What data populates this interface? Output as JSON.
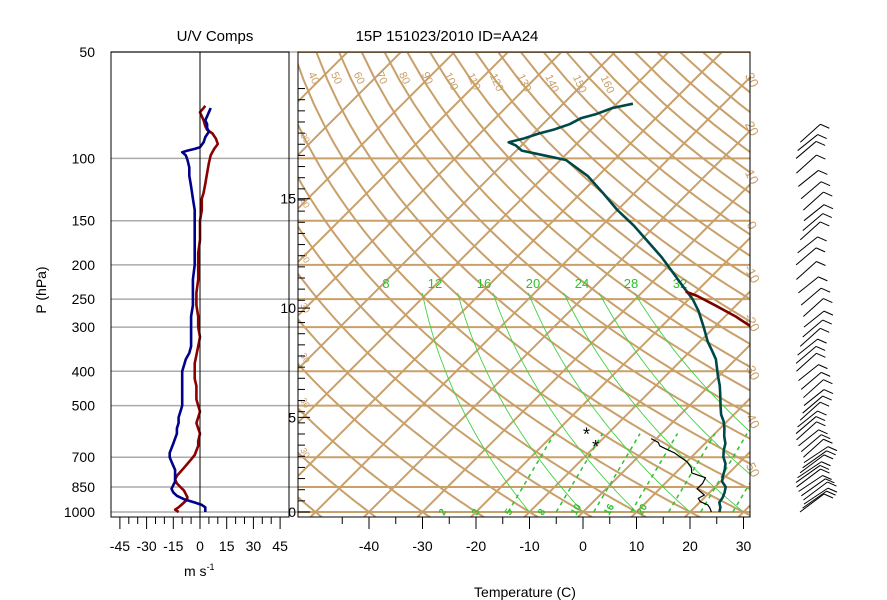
{
  "chart_data": [
    {
      "type": "line",
      "panel": "uv_components",
      "title": "U/V Comps",
      "xlabel": "m s",
      "xlabel_superscript": "-1",
      "ylabel": "P (hPa)",
      "y_scale": "log",
      "y_reversed": true,
      "ylim": [
        1000,
        50
      ],
      "xlim": [
        -50,
        50
      ],
      "x_ticks": [
        -45,
        -30,
        -15,
        0,
        15,
        30,
        45
      ],
      "y_tick_labels": [
        50,
        100,
        150,
        200,
        250,
        300,
        400,
        500,
        700,
        850,
        1000
      ],
      "grid": "horizontal at labeled pressures",
      "series": [
        {
          "color": "#8b0000",
          "points": [
            [
              1000,
              -12
            ],
            [
              985,
              -14
            ],
            [
              970,
              -12
            ],
            [
              950,
              -10
            ],
            [
              930,
              -8
            ],
            [
              910,
              -7
            ],
            [
              890,
              -8
            ],
            [
              870,
              -9
            ],
            [
              850,
              -11
            ],
            [
              830,
              -13
            ],
            [
              810,
              -14
            ],
            [
              790,
              -13
            ],
            [
              770,
              -11
            ],
            [
              750,
              -9
            ],
            [
              730,
              -7
            ],
            [
              710,
              -5
            ],
            [
              690,
              -3
            ],
            [
              670,
              -2
            ],
            [
              650,
              -1
            ],
            [
              630,
              -1
            ],
            [
              600,
              0
            ],
            [
              580,
              -1
            ],
            [
              560,
              -2
            ],
            [
              540,
              -1
            ],
            [
              520,
              0
            ],
            [
              500,
              -1
            ],
            [
              480,
              -2
            ],
            [
              460,
              -2
            ],
            [
              440,
              -2
            ],
            [
              420,
              -3
            ],
            [
              400,
              -3
            ],
            [
              380,
              -3
            ],
            [
              360,
              -2
            ],
            [
              340,
              -1
            ],
            [
              320,
              0
            ],
            [
              300,
              -1
            ],
            [
              280,
              -1
            ],
            [
              260,
              -2
            ],
            [
              240,
              -2
            ],
            [
              220,
              -1
            ],
            [
              200,
              -1
            ],
            [
              185,
              -1
            ],
            [
              170,
              0
            ],
            [
              160,
              0
            ],
            [
              150,
              0
            ],
            [
              140,
              1
            ],
            [
              130,
              1
            ],
            [
              125,
              2
            ],
            [
              118,
              3
            ],
            [
              110,
              4
            ],
            [
              103,
              5
            ],
            [
              98,
              6
            ],
            [
              94,
              8
            ],
            [
              91,
              10
            ],
            [
              88,
              9
            ],
            [
              85,
              7
            ],
            [
              83,
              4
            ],
            [
              81,
              3
            ],
            [
              78,
              2
            ],
            [
              76,
              1
            ],
            [
              74,
              0
            ],
            [
              72,
              2
            ],
            [
              71,
              3
            ]
          ]
        },
        {
          "color": "#00008b",
          "points": [
            [
              1000,
              3
            ],
            [
              985,
              3
            ],
            [
              970,
              3
            ],
            [
              955,
              1
            ],
            [
              940,
              -3
            ],
            [
              920,
              -9
            ],
            [
              900,
              -13
            ],
            [
              880,
              -15
            ],
            [
              860,
              -16
            ],
            [
              840,
              -15
            ],
            [
              820,
              -14
            ],
            [
              800,
              -14
            ],
            [
              780,
              -14
            ],
            [
              760,
              -14
            ],
            [
              740,
              -15
            ],
            [
              720,
              -16
            ],
            [
              700,
              -17
            ],
            [
              680,
              -17
            ],
            [
              660,
              -16
            ],
            [
              640,
              -15
            ],
            [
              620,
              -14
            ],
            [
              600,
              -13
            ],
            [
              580,
              -13
            ],
            [
              560,
              -12
            ],
            [
              540,
              -12
            ],
            [
              520,
              -11
            ],
            [
              500,
              -10
            ],
            [
              480,
              -10
            ],
            [
              460,
              -10
            ],
            [
              440,
              -10
            ],
            [
              420,
              -10
            ],
            [
              400,
              -10
            ],
            [
              385,
              -9
            ],
            [
              370,
              -8
            ],
            [
              355,
              -6
            ],
            [
              340,
              -5
            ],
            [
              320,
              -5
            ],
            [
              300,
              -5
            ],
            [
              280,
              -5
            ],
            [
              260,
              -4
            ],
            [
              240,
              -4
            ],
            [
              220,
              -4
            ],
            [
              200,
              -3
            ],
            [
              185,
              -3
            ],
            [
              170,
              -3
            ],
            [
              160,
              -3
            ],
            [
              150,
              -3
            ],
            [
              140,
              -3
            ],
            [
              130,
              -4
            ],
            [
              120,
              -5
            ],
            [
              112,
              -6
            ],
            [
              106,
              -6
            ],
            [
              101,
              -7
            ],
            [
              98,
              -8
            ],
            [
              96,
              -10
            ],
            [
              95,
              -7
            ],
            [
              94,
              -3
            ],
            [
              93,
              0
            ],
            [
              90,
              2
            ],
            [
              87,
              3
            ],
            [
              84,
              5
            ],
            [
              82,
              4
            ],
            [
              80,
              4
            ],
            [
              78,
              3
            ],
            [
              76,
              4
            ],
            [
              74,
              5
            ],
            [
              72,
              6
            ]
          ]
        }
      ]
    },
    {
      "type": "line",
      "panel": "skew_t",
      "title": "15P 151023/2010 ID=AA24",
      "xlabel": "Temperature (C)",
      "x_ticks": [
        -40,
        -30,
        -20,
        -10,
        0,
        10,
        20,
        30
      ],
      "y_scale": "log",
      "y_reversed": true,
      "ylim": [
        1000,
        50
      ],
      "height_km_labels": [
        0,
        5,
        10,
        15
      ],
      "height_km_pressures": [
        1000,
        540,
        265,
        130
      ],
      "isotherm_spacing_c": 10,
      "mixing_ratio_labels": [
        "2",
        "3",
        "5",
        "8",
        "10",
        "16",
        "20"
      ],
      "dry_adiabat_labels": [
        "40",
        "50",
        "60",
        "70",
        "80",
        "90",
        "100",
        "110",
        "120",
        "130",
        "140",
        "150",
        "160"
      ],
      "right_edge_labels": [
        "-50",
        "-40",
        "-30",
        "-20",
        "-10",
        "0",
        "10",
        "20",
        "30"
      ],
      "upper_theta_e_labels": [
        "8",
        "12",
        "16",
        "20",
        "24",
        "28",
        "32"
      ],
      "colors": {
        "background_lines": "#c9a06a",
        "theta_e": "#44d044",
        "moisture_label": "#2fc02f",
        "parcel": "#7a0000",
        "temperature": "#004848"
      },
      "series": [
        {
          "name_hidden": "temperature",
          "color": "#004848",
          "points": [
            [
              1000,
              25.5
            ],
            [
              970,
              24.8
            ],
            [
              940,
              23.7
            ],
            [
              910,
              23.4
            ],
            [
              880,
              22.8
            ],
            [
              850,
              22
            ],
            [
              820,
              20.3
            ],
            [
              790,
              19.4
            ],
            [
              760,
              18.6
            ],
            [
              730,
              17.6
            ],
            [
              700,
              16
            ],
            [
              670,
              14.8
            ],
            [
              640,
              13.8
            ],
            [
              610,
              12.2
            ],
            [
              580,
              10.8
            ],
            [
              555,
              9.4
            ],
            [
              530,
              7.6
            ],
            [
              500,
              5.8
            ],
            [
              470,
              4
            ],
            [
              440,
              2
            ],
            [
              410,
              -0.4
            ],
            [
              390,
              -2
            ],
            [
              370,
              -3.7
            ],
            [
              350,
              -6
            ],
            [
              330,
              -8.5
            ],
            [
              300,
              -12
            ],
            [
              270,
              -16
            ],
            [
              250,
              -19.3
            ],
            [
              230,
              -23.5
            ],
            [
              210,
              -28
            ],
            [
              190,
              -33
            ],
            [
              170,
              -39
            ],
            [
              155,
              -44
            ],
            [
              140,
              -50
            ],
            [
              125,
              -56
            ],
            [
              112,
              -62
            ],
            [
              101,
              -69
            ],
            [
              98,
              -74
            ],
            [
              95,
              -79
            ],
            [
              92,
              -81
            ],
            [
              90,
              -83
            ],
            [
              88,
              -81
            ],
            [
              85,
              -79
            ],
            [
              83,
              -77
            ],
            [
              80,
              -75
            ],
            [
              77,
              -74
            ],
            [
              75,
              -72
            ],
            [
              72,
              -70
            ],
            [
              70,
              -67
            ]
          ]
        },
        {
          "name_hidden": "parcel",
          "color": "#7a0000",
          "points": [
            [
              550,
              16
            ],
            [
              540,
              18.6
            ],
            [
              520,
              19.5
            ],
            [
              500,
              19.3
            ],
            [
              480,
              18.8
            ],
            [
              460,
              18.1
            ],
            [
              440,
              17.1
            ],
            [
              420,
              15.8
            ],
            [
              400,
              13.9
            ],
            [
              380,
              11.3
            ],
            [
              360,
              8.2
            ],
            [
              340,
              4.8
            ],
            [
              320,
              1
            ],
            [
              300,
              -3
            ],
            [
              280,
              -8
            ],
            [
              260,
              -14
            ],
            [
              245,
              -19
            ],
            [
              238,
              -22
            ]
          ]
        },
        {
          "name_hidden": "dewpoint",
          "color": "#000000",
          "points": [
            [
              1000,
              24
            ],
            [
              975,
              23
            ],
            [
              955,
              22
            ],
            [
              935,
              20
            ],
            [
              915,
              19
            ],
            [
              895,
              19.5
            ],
            [
              860,
              17
            ],
            [
              830,
              17
            ],
            [
              800,
              16.5
            ],
            [
              775,
              13
            ],
            [
              750,
              12
            ],
            [
              720,
              10
            ],
            [
              700,
              8
            ],
            [
              680,
              6
            ],
            [
              665,
              4
            ],
            [
              650,
              2
            ],
            [
              635,
              1
            ],
            [
              620,
              -1
            ]
          ],
          "markers": [
            [
              600,
              -14
            ],
            [
              650,
              -10
            ]
          ]
        }
      ]
    },
    {
      "type": "wind_barbs",
      "panel": "wind_profile",
      "color": "#000000",
      "levels": [
        1000,
        975,
        950,
        925,
        900,
        875,
        850,
        825,
        800,
        775,
        750,
        725,
        700,
        675,
        650,
        625,
        600,
        575,
        550,
        525,
        500,
        475,
        450,
        425,
        400,
        380,
        360,
        340,
        320,
        300,
        280,
        260,
        240,
        220,
        200,
        185,
        170,
        160,
        150,
        140,
        130,
        120,
        110,
        100,
        95,
        90
      ]
    }
  ]
}
